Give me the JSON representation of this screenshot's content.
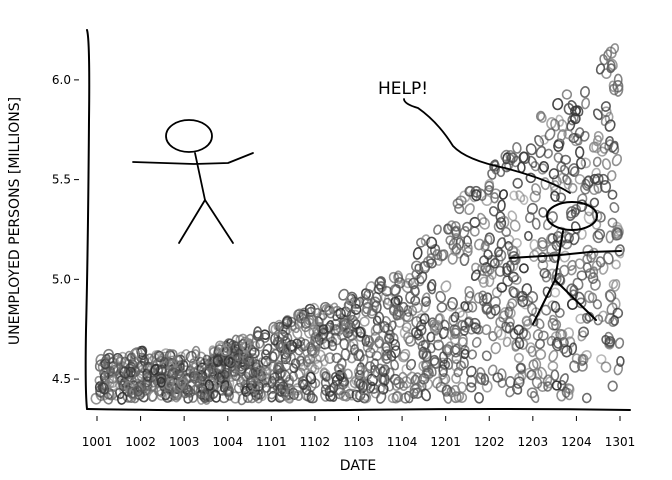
{
  "chart_data": {
    "type": "scatter",
    "title": "",
    "xlabel": "DATE",
    "ylabel": "UNEMPLOYED PERSONS [MILLIONS]",
    "x_ticks": [
      "1001",
      "1002",
      "1003",
      "1004",
      "1101",
      "1102",
      "1103",
      "1104",
      "1201",
      "1202",
      "1203",
      "1204",
      "1301"
    ],
    "y_ticks": [
      "4.5",
      "5.0",
      "5.5",
      "6.0"
    ],
    "ylim": [
      4.37,
      6.22
    ],
    "grid": false,
    "annotation": "HELP!",
    "envelope": {
      "x": [
        "1001",
        "1002",
        "1003",
        "1004",
        "1101",
        "1102",
        "1103",
        "1104",
        "1201",
        "1202",
        "1203",
        "1204",
        "1301"
      ],
      "upper": [
        4.62,
        4.64,
        4.62,
        4.68,
        4.76,
        4.87,
        4.96,
        5.08,
        5.33,
        5.56,
        5.78,
        5.98,
        6.2
      ],
      "lower": [
        4.4,
        4.4,
        4.4,
        4.4,
        4.4,
        4.4,
        4.4,
        4.4,
        4.4,
        4.4,
        4.4,
        4.4,
        4.4
      ]
    }
  }
}
